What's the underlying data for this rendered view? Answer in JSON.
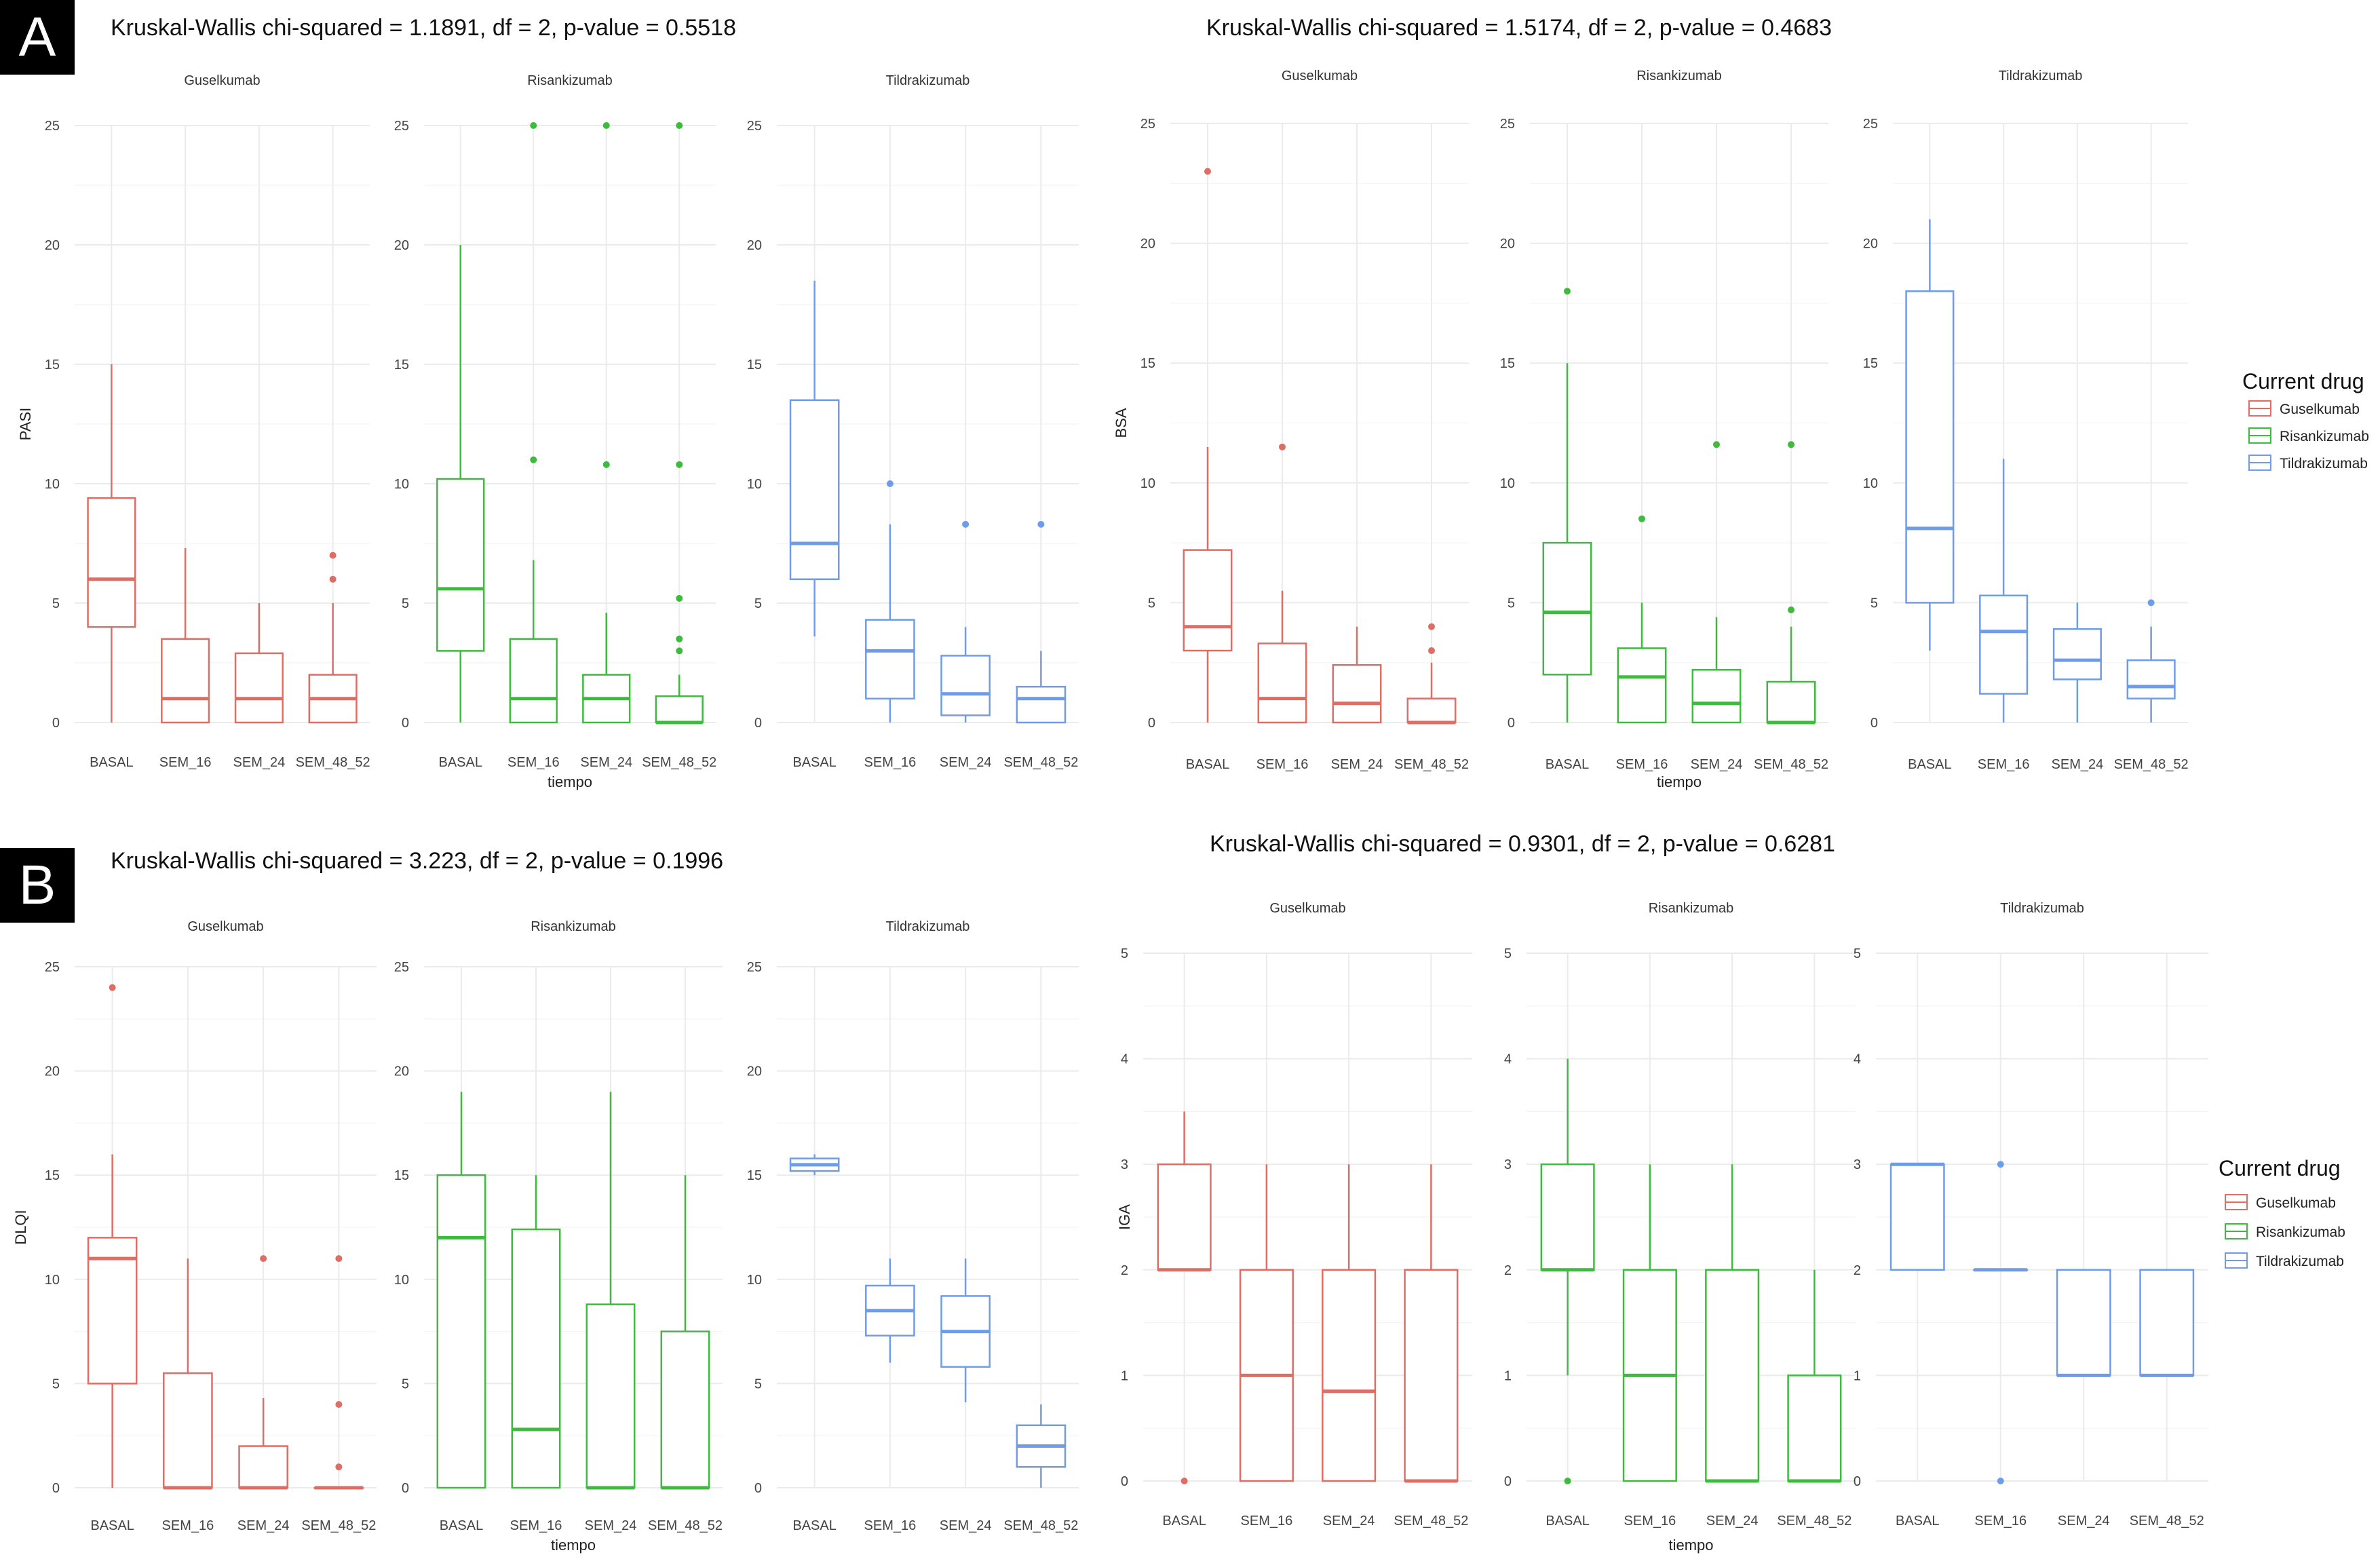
{
  "panels": [
    {
      "letter": "A"
    },
    {
      "letter": "B"
    }
  ],
  "chart_data": [
    {
      "type": "boxplot",
      "panel": "A",
      "title": "Kruskal-Wallis chi-squared = 1.1891, df = 2, p-value = 0.5518",
      "ylabel": "PASI",
      "xlabel": "tiempo",
      "ylim": [
        0,
        25
      ],
      "yticks": [
        0,
        5,
        10,
        15,
        20,
        25
      ],
      "categories": [
        "BASAL",
        "SEM_16",
        "SEM_24",
        "SEM_48_52"
      ],
      "facets": [
        {
          "name": "Guselkumab",
          "color": "#e06d64",
          "boxes": [
            {
              "q1": 4,
              "median": 6,
              "q3": 9.4,
              "low": 0,
              "high": 15,
              "outliers": []
            },
            {
              "q1": 0,
              "median": 1,
              "q3": 3.5,
              "low": 0,
              "high": 7.3,
              "outliers": []
            },
            {
              "q1": 0,
              "median": 1,
              "q3": 2.9,
              "low": 0,
              "high": 5,
              "outliers": []
            },
            {
              "q1": 0,
              "median": 1,
              "q3": 2,
              "low": 0,
              "high": 5,
              "outliers": [
                6,
                7
              ]
            }
          ]
        },
        {
          "name": "Risankizumab",
          "color": "#3dbb3d",
          "boxes": [
            {
              "q1": 3,
              "median": 5.6,
              "q3": 10.2,
              "low": 0,
              "high": 20,
              "outliers": []
            },
            {
              "q1": 0,
              "median": 1,
              "q3": 3.5,
              "low": 0,
              "high": 6.8,
              "outliers": [
                11,
                25
              ]
            },
            {
              "q1": 0,
              "median": 1,
              "q3": 2,
              "low": 0,
              "high": 4.6,
              "outliers": [
                10.8,
                25
              ]
            },
            {
              "q1": 0,
              "median": 0,
              "q3": 1.1,
              "low": 0,
              "high": 2,
              "outliers": [
                3,
                3.5,
                5.2,
                10.8,
                25
              ]
            }
          ]
        },
        {
          "name": "Tildrakizumab",
          "color": "#6f9ce8",
          "boxes": [
            {
              "q1": 6,
              "median": 7.5,
              "q3": 13.5,
              "low": 3.6,
              "high": 18.5,
              "outliers": []
            },
            {
              "q1": 1,
              "median": 3,
              "q3": 4.3,
              "low": 0,
              "high": 8.3,
              "outliers": [
                10
              ]
            },
            {
              "q1": 0.3,
              "median": 1.2,
              "q3": 2.8,
              "low": 0,
              "high": 4,
              "outliers": [
                8.3
              ]
            },
            {
              "q1": 0,
              "median": 1,
              "q3": 1.5,
              "low": 0,
              "high": 3,
              "outliers": [
                8.3
              ]
            }
          ]
        }
      ]
    },
    {
      "type": "boxplot",
      "panel": "A",
      "title": "Kruskal-Wallis chi-squared = 1.5174, df = 2, p-value = 0.4683",
      "ylabel": "BSA",
      "xlabel": "tiempo",
      "ylim": [
        0,
        25
      ],
      "yticks": [
        0,
        5,
        10,
        15,
        20,
        25
      ],
      "categories": [
        "BASAL",
        "SEM_16",
        "SEM_24",
        "SEM_48_52"
      ],
      "legend": {
        "title": "Current drug",
        "items": [
          "Guselkumab",
          "Risankizumab",
          "Tildrakizumab"
        ],
        "position": "right"
      },
      "facets": [
        {
          "name": "Guselkumab",
          "color": "#e06d64",
          "boxes": [
            {
              "q1": 3,
              "median": 4,
              "q3": 7.2,
              "low": 0,
              "high": 11.5,
              "outliers": [
                23
              ]
            },
            {
              "q1": 0,
              "median": 1,
              "q3": 3.3,
              "low": 0,
              "high": 5.5,
              "outliers": [
                11.5
              ]
            },
            {
              "q1": 0,
              "median": 0.8,
              "q3": 2.4,
              "low": 0,
              "high": 4,
              "outliers": []
            },
            {
              "q1": 0,
              "median": 0,
              "q3": 1,
              "low": 0,
              "high": 2.5,
              "outliers": [
                3,
                4
              ]
            }
          ]
        },
        {
          "name": "Risankizumab",
          "color": "#3dbb3d",
          "boxes": [
            {
              "q1": 2,
              "median": 4.6,
              "q3": 7.5,
              "low": 0,
              "high": 15,
              "outliers": [
                18
              ]
            },
            {
              "q1": 0,
              "median": 1.9,
              "q3": 3.1,
              "low": 0,
              "high": 5,
              "outliers": [
                8.5
              ]
            },
            {
              "q1": 0,
              "median": 0.8,
              "q3": 2.2,
              "low": 0,
              "high": 4.4,
              "outliers": [
                11.6
              ]
            },
            {
              "q1": 0,
              "median": 0,
              "q3": 1.7,
              "low": 0,
              "high": 4,
              "outliers": [
                4.7,
                11.6
              ]
            }
          ]
        },
        {
          "name": "Tildrakizumab",
          "color": "#6f9ce8",
          "boxes": [
            {
              "q1": 5,
              "median": 8.1,
              "q3": 18,
              "low": 3,
              "high": 21,
              "outliers": []
            },
            {
              "q1": 1.2,
              "median": 3.8,
              "q3": 5.3,
              "low": 0,
              "high": 11,
              "outliers": []
            },
            {
              "q1": 1.8,
              "median": 2.6,
              "q3": 3.9,
              "low": 0,
              "high": 5,
              "outliers": []
            },
            {
              "q1": 1,
              "median": 1.5,
              "q3": 2.6,
              "low": 0,
              "high": 4,
              "outliers": [
                5
              ]
            }
          ]
        }
      ]
    },
    {
      "type": "boxplot",
      "panel": "B",
      "title": "Kruskal-Wallis chi-squared = 3.223, df = 2, p-value = 0.1996",
      "ylabel": "DLQI",
      "xlabel": "tiempo",
      "ylim": [
        0,
        25
      ],
      "yticks": [
        0,
        5,
        10,
        15,
        20,
        25
      ],
      "categories": [
        "BASAL",
        "SEM_16",
        "SEM_24",
        "SEM_48_52"
      ],
      "facets": [
        {
          "name": "Guselkumab",
          "color": "#e06d64",
          "boxes": [
            {
              "q1": 5,
              "median": 11,
              "q3": 12,
              "low": 0,
              "high": 16,
              "outliers": [
                24
              ]
            },
            {
              "q1": 0,
              "median": 0,
              "q3": 5.5,
              "low": 0,
              "high": 11,
              "outliers": []
            },
            {
              "q1": 0,
              "median": 0,
              "q3": 2,
              "low": 0,
              "high": 4.3,
              "outliers": [
                11
              ]
            },
            {
              "q1": 0,
              "median": 0,
              "q3": 0,
              "low": 0,
              "high": 0,
              "outliers": [
                1,
                4,
                11
              ]
            }
          ]
        },
        {
          "name": "Risankizumab",
          "color": "#3dbb3d",
          "boxes": [
            {
              "q1": 0,
              "median": 12,
              "q3": 15,
              "low": 0,
              "high": 19,
              "outliers": []
            },
            {
              "q1": 0,
              "median": 2.8,
              "q3": 12.4,
              "low": 0,
              "high": 15,
              "outliers": []
            },
            {
              "q1": 0,
              "median": 0,
              "q3": 8.8,
              "low": 0,
              "high": 19,
              "outliers": []
            },
            {
              "q1": 0,
              "median": 0,
              "q3": 7.5,
              "low": 0,
              "high": 15,
              "outliers": []
            }
          ]
        },
        {
          "name": "Tildrakizumab",
          "color": "#6f9ce8",
          "boxes": [
            {
              "q1": 15.2,
              "median": 15.5,
              "q3": 15.8,
              "low": 15,
              "high": 16,
              "outliers": []
            },
            {
              "q1": 7.3,
              "median": 8.5,
              "q3": 9.7,
              "low": 6,
              "high": 11,
              "outliers": []
            },
            {
              "q1": 5.8,
              "median": 7.5,
              "q3": 9.2,
              "low": 4.1,
              "high": 11,
              "outliers": []
            },
            {
              "q1": 1,
              "median": 2,
              "q3": 3,
              "low": 0,
              "high": 4,
              "outliers": []
            }
          ]
        }
      ]
    },
    {
      "type": "boxplot",
      "panel": "B",
      "title": "Kruskal-Wallis chi-squared = 0.9301, df = 2, p-value = 0.6281",
      "ylabel": "IGA",
      "xlabel": "tiempo",
      "ylim": [
        0,
        5
      ],
      "yticks": [
        0,
        1,
        2,
        3,
        4,
        5
      ],
      "categories": [
        "BASAL",
        "SEM_16",
        "SEM_24",
        "SEM_48_52"
      ],
      "legend": {
        "title": "Current drug",
        "items": [
          "Guselkumab",
          "Risankizumab",
          "Tildrakizumab"
        ],
        "position": "right"
      },
      "facets": [
        {
          "name": "Guselkumab",
          "color": "#e06d64",
          "boxes": [
            {
              "q1": 2,
              "median": 2,
              "q3": 3,
              "low": 2,
              "high": 3.5,
              "outliers": [
                0
              ]
            },
            {
              "q1": 0,
              "median": 1,
              "q3": 2,
              "low": 0,
              "high": 3,
              "outliers": []
            },
            {
              "q1": 0,
              "median": 0.85,
              "q3": 2,
              "low": 0,
              "high": 3,
              "outliers": []
            },
            {
              "q1": 0,
              "median": 0,
              "q3": 2,
              "low": 0,
              "high": 3,
              "outliers": []
            }
          ]
        },
        {
          "name": "Risankizumab",
          "color": "#3dbb3d",
          "boxes": [
            {
              "q1": 2,
              "median": 2,
              "q3": 3,
              "low": 1,
              "high": 4,
              "outliers": [
                0
              ]
            },
            {
              "q1": 0,
              "median": 1,
              "q3": 2,
              "low": 0,
              "high": 3,
              "outliers": []
            },
            {
              "q1": 0,
              "median": 0,
              "q3": 2,
              "low": 0,
              "high": 3,
              "outliers": []
            },
            {
              "q1": 0,
              "median": 0,
              "q3": 1,
              "low": 0,
              "high": 2,
              "outliers": []
            }
          ]
        },
        {
          "name": "Tildrakizumab",
          "color": "#6f9ce8",
          "boxes": [
            {
              "q1": 2,
              "median": 3,
              "q3": 3,
              "low": 2,
              "high": 3,
              "outliers": []
            },
            {
              "q1": 2,
              "median": 2,
              "q3": 2,
              "low": 2,
              "high": 2,
              "outliers": [
                0,
                3
              ]
            },
            {
              "q1": 1,
              "median": 1,
              "q3": 2,
              "low": 1,
              "high": 2,
              "outliers": []
            },
            {
              "q1": 1,
              "median": 1,
              "q3": 2,
              "low": 1,
              "high": 2,
              "outliers": []
            }
          ]
        }
      ]
    }
  ]
}
